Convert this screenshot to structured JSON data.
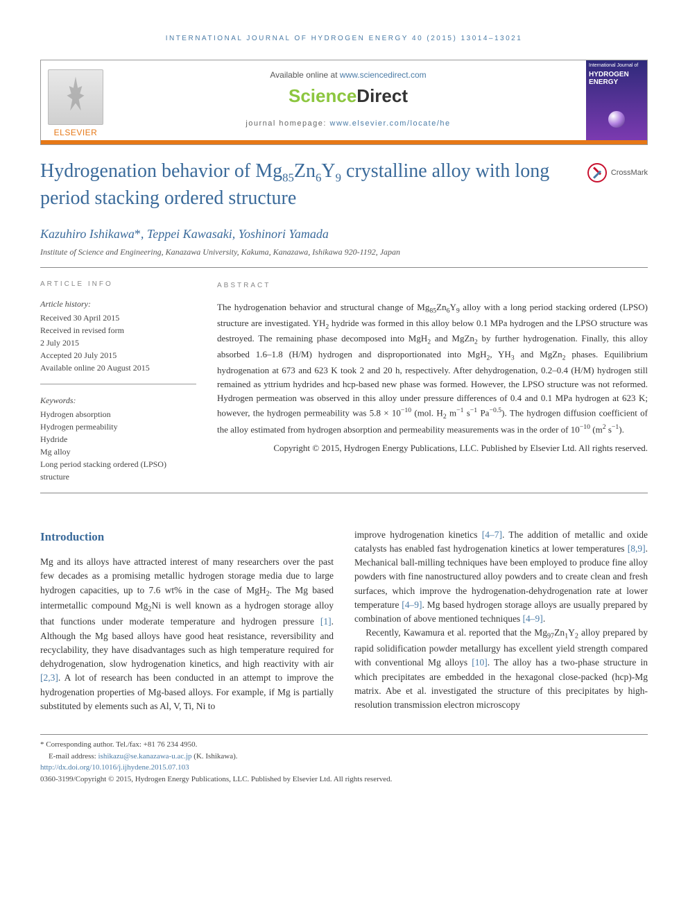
{
  "running_head": "INTERNATIONAL JOURNAL OF HYDROGEN ENERGY 40 (2015) 13014–13021",
  "header": {
    "available_prefix": "Available online at ",
    "available_url": "www.sciencedirect.com",
    "sd_text_a": "Science",
    "sd_text_b": "Direct",
    "homepage_prefix": "journal homepage: ",
    "homepage_url": "www.elsevier.com/locate/he",
    "publisher_logo": "ELSEVIER",
    "journal_cover_small": "International Journal of",
    "journal_cover_title": "HYDROGEN ENERGY"
  },
  "crossmark_label": "CrossMark",
  "title_html": "Hydrogenation behavior of Mg<sub>85</sub>Zn<sub>6</sub>Y<sub>9</sub> crystalline alloy with long period stacking ordered structure",
  "authors_html": "Kazuhiro Ishikawa<span class=\"corr\">*</span>, Teppei Kawasaki, Yoshinori Yamada",
  "affiliation": "Institute of Science and Engineering, Kanazawa University, Kakuma, Kanazawa, Ishikawa 920-1192, Japan",
  "info": {
    "heading": "ARTICLE INFO",
    "history_label": "Article history:",
    "history_lines": [
      "Received 30 April 2015",
      "Received in revised form",
      "2 July 2015",
      "Accepted 20 July 2015",
      "Available online 20 August 2015"
    ],
    "keywords_label": "Keywords:",
    "keywords": [
      "Hydrogen absorption",
      "Hydrogen permeability",
      "Hydride",
      "Mg alloy",
      "Long period stacking ordered (LPSO) structure"
    ]
  },
  "abstract": {
    "heading": "ABSTRACT",
    "body_html": "The hydrogenation behavior and structural change of Mg<sub>85</sub>Zn<sub>6</sub>Y<sub>9</sub> alloy with a long period stacking ordered (LPSO) structure are investigated. YH<sub>2</sub> hydride was formed in this alloy below 0.1 MPa hydrogen and the LPSO structure was destroyed. The remaining phase decomposed into MgH<sub>2</sub> and MgZn<sub>2</sub> by further hydrogenation. Finally, this alloy absorbed 1.6–1.8 (H/M) hydrogen and disproportionated into MgH<sub>2</sub>, YH<sub>3</sub> and MgZn<sub>2</sub> phases. Equilibrium hydrogenation at 673 and 623 K took 2 and 20 h, respectively. After dehydrogenation, 0.2–0.4 (H/M) hydrogen still remained as yttrium hydrides and hcp-based new phase was formed. However, the LPSO structure was not reformed. Hydrogen permeation was observed in this alloy under pressure differences of 0.4 and 0.1 MPa hydrogen at 623 K; however, the hydrogen permeability was 5.8 × 10<sup>−10</sup> (mol. H<sub>2</sub> m<sup>−1</sup> s<sup>−1</sup> Pa<sup>−0.5</sup>). The hydrogen diffusion coefficient of the alloy estimated from hydrogen absorption and permeability measurements was in the order of 10<sup>−10</sup> (m<sup>2</sup> s<sup>−1</sup>).",
    "copyright": "Copyright © 2015, Hydrogen Energy Publications, LLC. Published by Elsevier Ltd. All rights reserved."
  },
  "intro": {
    "heading": "Introduction",
    "col1_html": "Mg and its alloys have attracted interest of many researchers over the past few decades as a promising metallic hydrogen storage media due to large hydrogen capacities, up to 7.6 wt% in the case of MgH<sub>2</sub>. The Mg based intermetallic compound Mg<sub>2</sub>Ni is well known as a hydrogen storage alloy that functions under moderate temperature and hydrogen pressure <a>[1]</a>. Although the Mg based alloys have good heat resistance, reversibility and recyclability, they have disadvantages such as high temperature required for dehydrogenation, slow hydrogenation kinetics, and high reactivity with air <a>[2,3]</a>. A lot of research has been conducted in an attempt to improve the hydrogenation properties of Mg-based alloys. For example, if Mg is partially substituted by elements such as Al, V, Ti, Ni to",
    "col2_p1_html": "improve hydrogenation kinetics <a>[4–7]</a>. The addition of metallic and oxide catalysts has enabled fast hydrogenation kinetics at lower temperatures <a>[8,9]</a>. Mechanical ball-milling techniques have been employed to produce fine alloy powders with fine nanostructured alloy powders and to create clean and fresh surfaces, which improve the hydrogenation-dehydrogenation rate at lower temperature <a>[4–9]</a>. Mg based hydrogen storage alloys are usually prepared by combination of above mentioned techniques <a>[4–9]</a>.",
    "col2_p2_html": "Recently, Kawamura et al. reported that the Mg<sub>97</sub>Zn<sub>1</sub>Y<sub>2</sub> alloy prepared by rapid solidification powder metallurgy has excellent yield strength compared with conventional Mg alloys <a>[10]</a>. The alloy has a two-phase structure in which precipitates are embedded in the hexagonal close-packed (hcp)-Mg matrix. Abe et al. investigated the structure of this precipitates by high-resolution transmission electron microscopy"
  },
  "footnotes": {
    "corr": "* Corresponding author. Tel./fax: +81 76 234 4950.",
    "email_label": "E-mail address: ",
    "email": "ishikazu@se.kanazawa-u.ac.jp",
    "email_suffix": " (K. Ishikawa).",
    "doi": "http://dx.doi.org/10.1016/j.ijhydene.2015.07.103",
    "issn": "0360-3199/Copyright © 2015, Hydrogen Energy Publications, LLC. Published by Elsevier Ltd. All rights reserved."
  },
  "colors": {
    "link": "#4a7ba6",
    "heading": "#3a6a9a",
    "orange": "#e67817",
    "sd_green": "#8cc63f"
  }
}
